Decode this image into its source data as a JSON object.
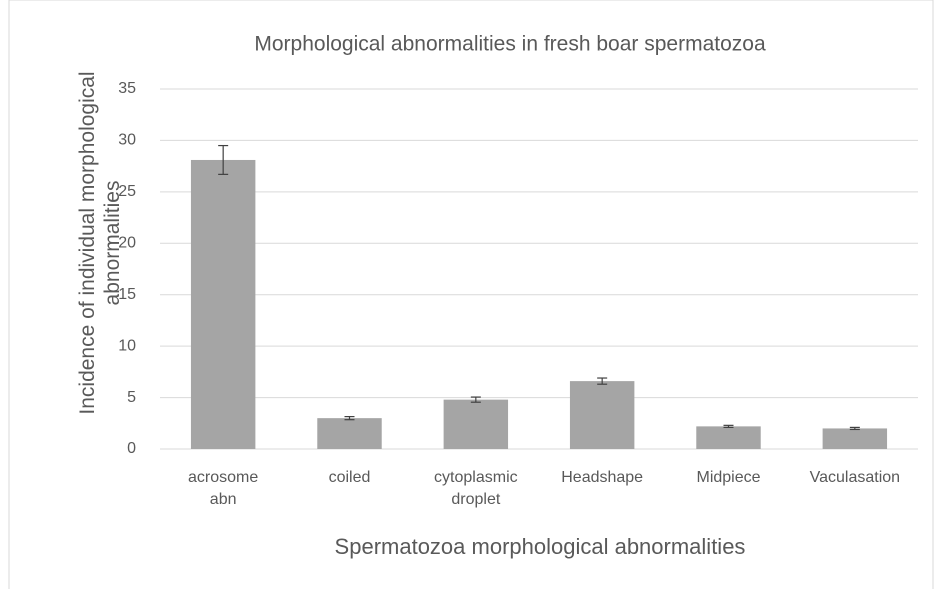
{
  "chart_data": {
    "type": "bar",
    "title": "Morphological abnormalities in fresh boar spermatozoa",
    "x_label": "Spermatozoa morphological abnormalities",
    "y_label": "Incidence of individual morphological abnormalities",
    "categories": [
      "acrosome abn",
      "coiled",
      "cytoplasmic droplet",
      "Headshape",
      "Midpiece",
      "Vaculasation"
    ],
    "values": [
      28.1,
      3.0,
      4.8,
      6.6,
      2.2,
      2.0
    ],
    "errors": [
      1.4,
      0.15,
      0.25,
      0.3,
      0.1,
      0.1
    ],
    "color": "#a5a5a5",
    "ylim": [
      0,
      35
    ],
    "yticks": [
      0,
      5,
      10,
      15,
      20,
      25,
      30,
      35
    ],
    "grid": true
  }
}
